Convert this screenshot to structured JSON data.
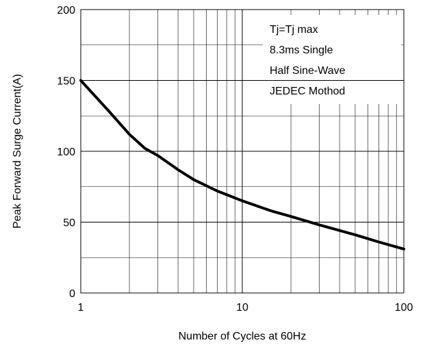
{
  "chart_data": {
    "type": "line",
    "title": "",
    "xlabel": "Number of Cycles at 60Hz",
    "ylabel": "Peak Forward Surge Current(A)",
    "x_scale": "log",
    "xlim": [
      1,
      100
    ],
    "ylim": [
      0,
      200
    ],
    "grid": true,
    "x_ticks": [
      1,
      10,
      100
    ],
    "x_tick_labels": [
      "1",
      "10",
      "100"
    ],
    "y_ticks": [
      0,
      50,
      100,
      150,
      200
    ],
    "y_tick_labels": [
      "0",
      "50",
      "100",
      "150",
      "200"
    ],
    "series": [
      {
        "x": [
          1,
          1.5,
          2,
          2.5,
          3,
          4,
          5,
          7,
          10,
          15,
          20,
          30,
          50,
          70,
          100
        ],
        "y": [
          150,
          128,
          112,
          102,
          97,
          87,
          80,
          72,
          65,
          58,
          54,
          48,
          41,
          36,
          31
        ]
      }
    ],
    "annotation": [
      "Tj=Tj max",
      "8.3ms Single",
      "Half Sine-Wave",
      "JEDEC Mothod"
    ],
    "colors": {
      "line": "#000000",
      "grid": "#000000",
      "background": "#ffffff"
    }
  }
}
